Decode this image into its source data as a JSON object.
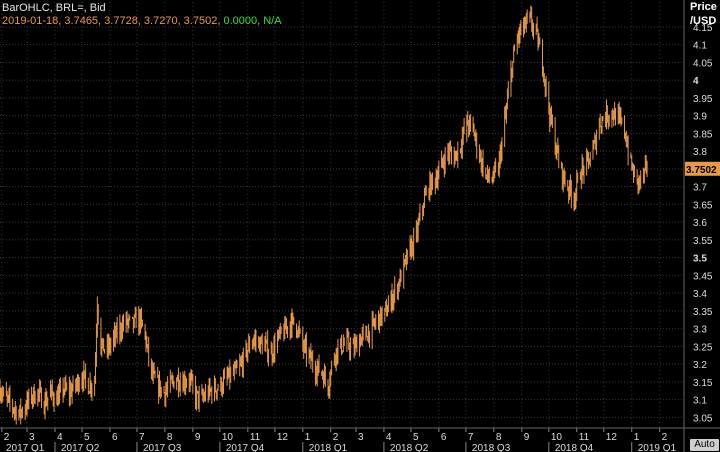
{
  "header": {
    "study": "BarOHLC, BRL=, Bid",
    "date": "2019-01-18",
    "ohlc": "3.7465, 3.7728, 3.7270, 3.7502",
    "change": "0.0000",
    "na": "N/A"
  },
  "price_axis": {
    "title_line1": "Price",
    "title_line2": "/USD"
  },
  "auto_label": "Auto",
  "colors": {
    "bars": "#e79a47",
    "background": "#000000",
    "grid": "#3a3a3a",
    "last_price_bg": "#e79a47",
    "change": "#3fdc3f"
  },
  "chart_data": {
    "type": "bar",
    "subtype": "OHLC",
    "series": [
      {
        "name": "BRL=, Bid"
      }
    ],
    "ylim": [
      3.02,
      4.22
    ],
    "y_ticks": [
      3.05,
      3.1,
      3.15,
      3.2,
      3.25,
      3.3,
      3.35,
      3.4,
      3.45,
      3.5,
      3.55,
      3.6,
      3.65,
      3.7,
      3.75,
      3.8,
      3.85,
      3.9,
      3.95,
      4,
      4.05,
      4.1,
      4.15
    ],
    "y_tick_labels": [
      "3.05",
      "3.1",
      "3.15",
      "3.2",
      "3.25",
      "3.3",
      "3.35",
      "3.4",
      "3.45",
      "3.5",
      "3.55",
      "3.6",
      "3.65",
      "3.7",
      "",
      "3.8",
      "3.85",
      "3.9",
      "3.95",
      "4",
      "4.05",
      "4.1",
      "4.15"
    ],
    "bold_ticks": [
      "3.5",
      "4"
    ],
    "last_price": "3.7502",
    "x_month_ticks": [
      "2",
      "3",
      "4",
      "5",
      "6",
      "7",
      "8",
      "9",
      "10",
      "11",
      "12",
      "1",
      "2",
      "3",
      "4",
      "5",
      "6",
      "7",
      "8",
      "9",
      "10",
      "11",
      "12",
      "1",
      "2"
    ],
    "x_quarter_labels": [
      "2017 Q1",
      "2017 Q2",
      "2017 Q3",
      "2017 Q4",
      "2018 Q1",
      "2018 Q2",
      "2018 Q3",
      "2018 Q4",
      "2019 Q1"
    ],
    "x_range": [
      "2017-01-30",
      "2019-02-28"
    ],
    "points": [
      [
        "2017-01-30",
        3.13
      ],
      [
        "2017-02-06",
        3.1
      ],
      [
        "2017-02-13",
        3.08
      ],
      [
        "2017-02-20",
        3.06
      ],
      [
        "2017-02-27",
        3.08
      ],
      [
        "2017-03-06",
        3.11
      ],
      [
        "2017-03-13",
        3.12
      ],
      [
        "2017-03-20",
        3.09
      ],
      [
        "2017-03-27",
        3.12
      ],
      [
        "2017-04-03",
        3.1
      ],
      [
        "2017-04-10",
        3.13
      ],
      [
        "2017-04-17",
        3.12
      ],
      [
        "2017-04-24",
        3.14
      ],
      [
        "2017-05-01",
        3.17
      ],
      [
        "2017-05-08",
        3.14
      ],
      [
        "2017-05-15",
        3.15
      ],
      [
        "2017-05-18",
        3.38
      ],
      [
        "2017-05-22",
        3.25
      ],
      [
        "2017-05-29",
        3.24
      ],
      [
        "2017-06-05",
        3.27
      ],
      [
        "2017-06-12",
        3.3
      ],
      [
        "2017-06-19",
        3.32
      ],
      [
        "2017-06-26",
        3.31
      ],
      [
        "2017-07-03",
        3.33
      ],
      [
        "2017-07-10",
        3.28
      ],
      [
        "2017-07-17",
        3.17
      ],
      [
        "2017-07-24",
        3.14
      ],
      [
        "2017-07-31",
        3.12
      ],
      [
        "2017-08-07",
        3.14
      ],
      [
        "2017-08-14",
        3.16
      ],
      [
        "2017-08-21",
        3.15
      ],
      [
        "2017-08-28",
        3.16
      ],
      [
        "2017-09-04",
        3.11
      ],
      [
        "2017-09-11",
        3.1
      ],
      [
        "2017-09-18",
        3.12
      ],
      [
        "2017-09-25",
        3.13
      ],
      [
        "2017-10-02",
        3.14
      ],
      [
        "2017-10-09",
        3.16
      ],
      [
        "2017-10-16",
        3.17
      ],
      [
        "2017-10-23",
        3.19
      ],
      [
        "2017-10-30",
        3.23
      ],
      [
        "2017-11-06",
        3.27
      ],
      [
        "2017-11-13",
        3.26
      ],
      [
        "2017-11-20",
        3.25
      ],
      [
        "2017-11-27",
        3.23
      ],
      [
        "2017-12-04",
        3.27
      ],
      [
        "2017-12-11",
        3.29
      ],
      [
        "2017-12-18",
        3.32
      ],
      [
        "2017-12-25",
        3.31
      ],
      [
        "2018-01-01",
        3.25
      ],
      [
        "2018-01-08",
        3.22
      ],
      [
        "2018-01-15",
        3.19
      ],
      [
        "2018-01-22",
        3.18
      ],
      [
        "2018-01-29",
        3.14
      ],
      [
        "2018-02-05",
        3.23
      ],
      [
        "2018-02-12",
        3.25
      ],
      [
        "2018-02-19",
        3.26
      ],
      [
        "2018-02-26",
        3.24
      ],
      [
        "2018-03-05",
        3.27
      ],
      [
        "2018-03-12",
        3.28
      ],
      [
        "2018-03-19",
        3.3
      ],
      [
        "2018-03-26",
        3.33
      ],
      [
        "2018-04-02",
        3.34
      ],
      [
        "2018-04-09",
        3.38
      ],
      [
        "2018-04-16",
        3.42
      ],
      [
        "2018-04-23",
        3.47
      ],
      [
        "2018-04-30",
        3.52
      ],
      [
        "2018-05-07",
        3.56
      ],
      [
        "2018-05-14",
        3.65
      ],
      [
        "2018-05-21",
        3.7
      ],
      [
        "2018-05-28",
        3.72
      ],
      [
        "2018-06-04",
        3.76
      ],
      [
        "2018-06-11",
        3.8
      ],
      [
        "2018-06-18",
        3.78
      ],
      [
        "2018-06-25",
        3.82
      ],
      [
        "2018-07-02",
        3.88
      ],
      [
        "2018-07-09",
        3.86
      ],
      [
        "2018-07-16",
        3.79
      ],
      [
        "2018-07-23",
        3.73
      ],
      [
        "2018-07-30",
        3.72
      ],
      [
        "2018-08-06",
        3.75
      ],
      [
        "2018-08-13",
        3.88
      ],
      [
        "2018-08-20",
        4.02
      ],
      [
        "2018-08-27",
        4.12
      ],
      [
        "2018-09-03",
        4.15
      ],
      [
        "2018-09-10",
        4.17
      ],
      [
        "2018-09-17",
        4.13
      ],
      [
        "2018-09-24",
        4.05
      ],
      [
        "2018-10-01",
        3.92
      ],
      [
        "2018-10-08",
        3.82
      ],
      [
        "2018-10-15",
        3.74
      ],
      [
        "2018-10-22",
        3.7
      ],
      [
        "2018-10-29",
        3.67
      ],
      [
        "2018-11-05",
        3.74
      ],
      [
        "2018-11-12",
        3.76
      ],
      [
        "2018-11-19",
        3.8
      ],
      [
        "2018-11-26",
        3.88
      ],
      [
        "2018-12-03",
        3.9
      ],
      [
        "2018-12-10",
        3.91
      ],
      [
        "2018-12-17",
        3.89
      ],
      [
        "2018-12-24",
        3.86
      ],
      [
        "2018-12-31",
        3.76
      ],
      [
        "2019-01-07",
        3.71
      ],
      [
        "2019-01-14",
        3.73
      ],
      [
        "2019-01-18",
        3.75
      ]
    ]
  }
}
